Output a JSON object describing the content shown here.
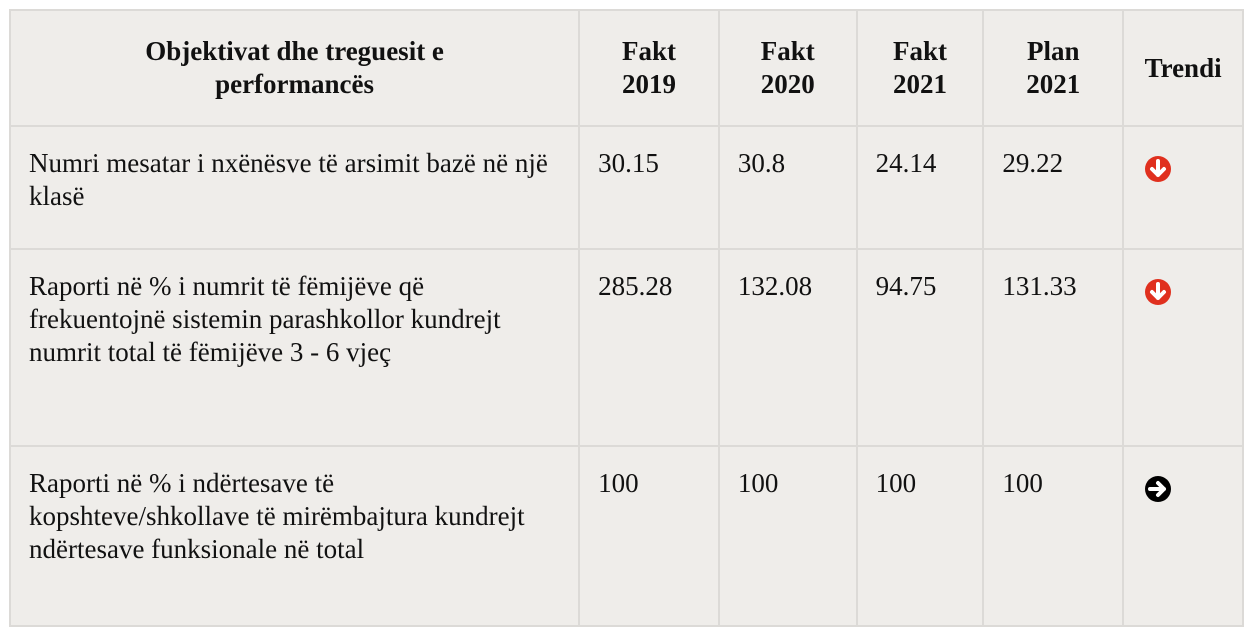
{
  "table": {
    "header": [
      "Objektivat dhe treguesit e performancës",
      "Fakt 2019",
      "Fakt 2020",
      "Fakt 2021",
      "Plan 2021",
      "Trendi"
    ],
    "rows": [
      [
        "Numri mesatar i nxënësve të arsimit bazë në një klasë",
        "30.15",
        "30.8",
        "24.14",
        "29.22"
      ],
      [
        "Raporti në % i numrit të fëmijëve që frekuentojnë sistemin parashkollor kundrejt numrit total të fëmijëve 3 - 6 vjeç",
        "285.28",
        "132.08",
        "94.75",
        "131.33"
      ],
      [
        "Raporti në % i ndërtesave të kopshteve/shkollave të mirëmbajtura kundrejt ndërtesave funksionale në total",
        "100",
        "100",
        "100",
        "100"
      ]
    ]
  }
}
